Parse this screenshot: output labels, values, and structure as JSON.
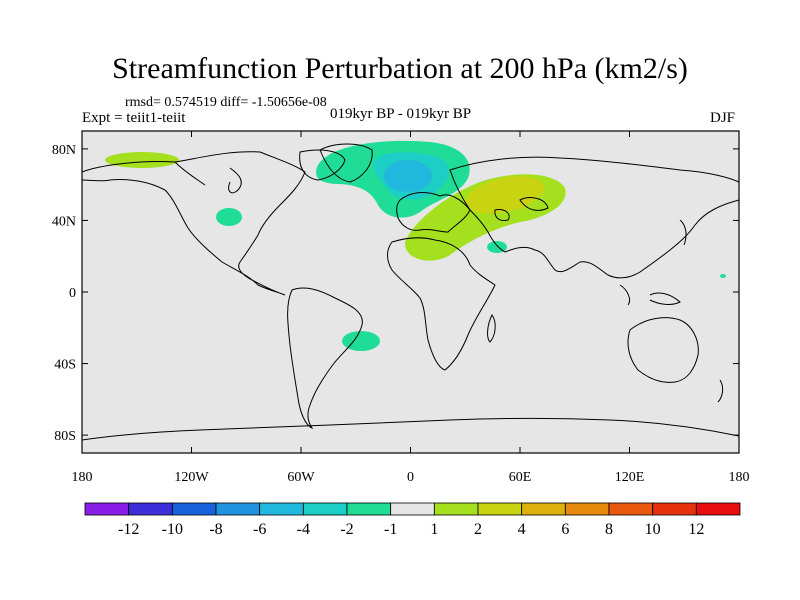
{
  "title": "Streamfunction Perturbation at 200 hPa (km2/s)",
  "stats": "rmsd= 0.574519 diff= -1.50656e-08",
  "experiment": "Expt = teiit1-teiit",
  "period": "019kyr BP - 019kyr BP",
  "season": "DJF",
  "map": {
    "lat_labels": [
      "80N",
      "40N",
      "0",
      "40S",
      "80S"
    ],
    "lon_labels": [
      "180",
      "120W",
      "60W",
      "0",
      "60E",
      "120E",
      "180"
    ],
    "lat_values": [
      80,
      40,
      0,
      -40,
      -80
    ],
    "lon_values": [
      -180,
      -120,
      -60,
      0,
      60,
      120,
      180
    ],
    "background_color": "#e6e6e6"
  },
  "colorbar": {
    "labels": [
      "-12",
      "-10",
      "-8",
      "-6",
      "-4",
      "-2",
      "-1",
      "1",
      "2",
      "4",
      "6",
      "8",
      "10",
      "12"
    ],
    "colors": [
      "#8a1ee8",
      "#3c2ed9",
      "#1860dc",
      "#1f92e0",
      "#22b7dd",
      "#1ccfc6",
      "#1fdd96",
      "#e6e6e6",
      "#a5e01e",
      "#c9d312",
      "#dcb10c",
      "#e6880c",
      "#e8580e",
      "#e6300e",
      "#e60e0e"
    ]
  }
}
